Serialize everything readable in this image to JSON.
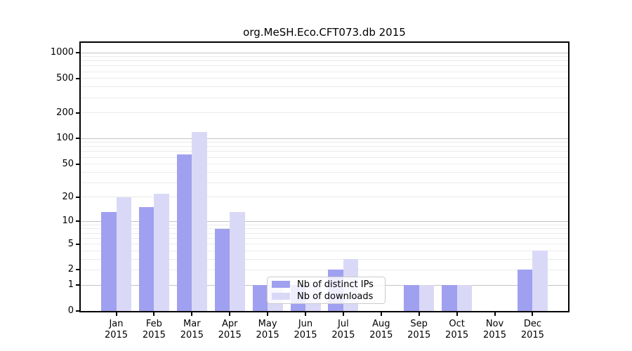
{
  "title": "org.MeSH.Eco.CFT073.db 2015",
  "legend": {
    "items": [
      {
        "label": "Nb of distinct IPs"
      },
      {
        "label": "Nb of downloads"
      }
    ]
  },
  "chart_data": {
    "type": "bar",
    "title": "org.MeSH.Eco.CFT073.db 2015",
    "categories": [
      "Jan",
      "Feb",
      "Mar",
      "Apr",
      "May",
      "Jun",
      "Jul",
      "Aug",
      "Sep",
      "Oct",
      "Nov",
      "Dec"
    ],
    "year_label": "2015",
    "series": [
      {
        "name": "Nb of distinct IPs",
        "color": "#a0a0f0",
        "values": [
          13,
          15,
          65,
          8,
          1,
          1,
          2,
          0,
          1,
          1,
          0,
          2
        ]
      },
      {
        "name": "Nb of downloads",
        "color": "#d9d9f7",
        "values": [
          20,
          22,
          120,
          13,
          1,
          1,
          3,
          0,
          1,
          1,
          0,
          4
        ]
      }
    ],
    "yscale": "log1p",
    "yticks": [
      0,
      1,
      2,
      5,
      10,
      20,
      50,
      100,
      200,
      500,
      1000
    ],
    "ylim": [
      0,
      1344
    ],
    "grid": true,
    "legend_position": "inside-bottom-center",
    "colors": {
      "major_grid": "#c3c3c3",
      "minor_grid": "#ebebeb",
      "axis": "#000000",
      "background": "#ffffff"
    }
  }
}
